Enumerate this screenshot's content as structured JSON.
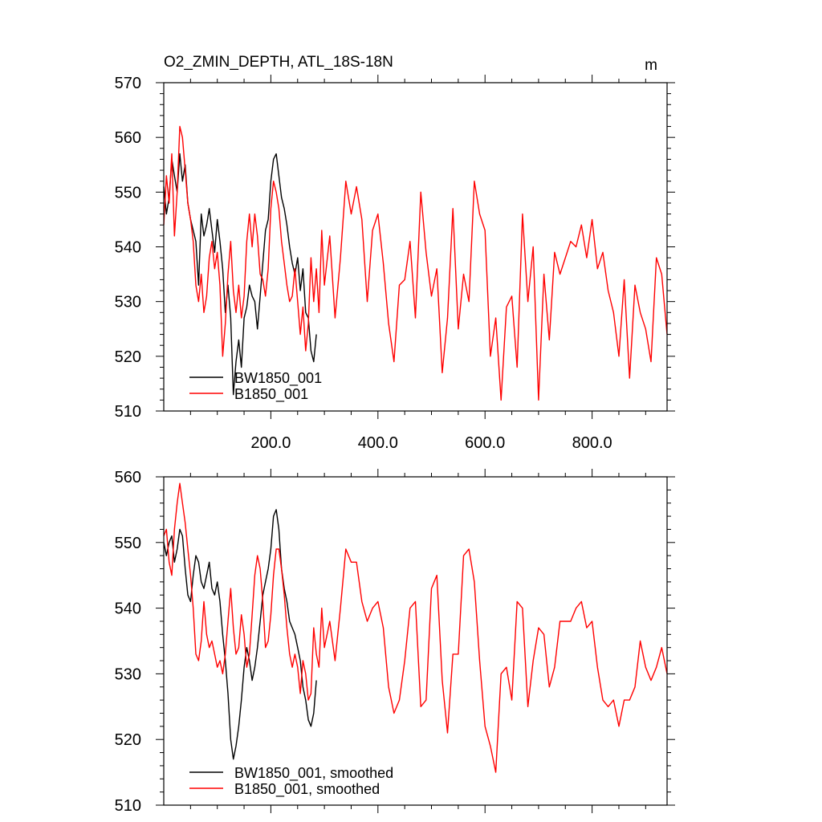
{
  "chart_data": [
    {
      "type": "line",
      "title": "O2_ZMIN_DEPTH, ATL_18S-18N",
      "units": "m",
      "xlim": [
        0,
        940
      ],
      "ylim": [
        510,
        570
      ],
      "x_tick_values": [
        200,
        400,
        600,
        800
      ],
      "x_tick_labels": [
        "200.0",
        "400.0",
        "600.0",
        "800.0"
      ],
      "y_tick_values": [
        510,
        520,
        530,
        540,
        550,
        560,
        570
      ],
      "y_tick_labels": [
        "510",
        "520",
        "530",
        "540",
        "550",
        "560",
        "570"
      ],
      "grid": false,
      "legend_position": "bottom-left",
      "series": [
        {
          "name": "BW1850_001",
          "color": "#000000",
          "x": [
            0,
            5,
            10,
            15,
            20,
            25,
            30,
            35,
            40,
            45,
            50,
            55,
            60,
            65,
            70,
            75,
            80,
            85,
            90,
            95,
            100,
            105,
            110,
            115,
            120,
            125,
            130,
            135,
            140,
            145,
            150,
            155,
            160,
            165,
            170,
            175,
            180,
            185,
            190,
            195,
            200,
            205,
            210,
            215,
            220,
            225,
            230,
            235,
            240,
            245,
            250,
            255,
            260,
            265,
            270,
            275,
            280,
            285
          ],
          "values": [
            551,
            546,
            549,
            556,
            553,
            550,
            557,
            552,
            555,
            548,
            545,
            543,
            541,
            533,
            546,
            542,
            544,
            547,
            543,
            539,
            545,
            541,
            536,
            528,
            533,
            527,
            513,
            519,
            523,
            518,
            527,
            529,
            533,
            531,
            530,
            525,
            531,
            537,
            543,
            545,
            552,
            556,
            557,
            553,
            549,
            547,
            544,
            540,
            537,
            535,
            538,
            532,
            536,
            528,
            527,
            521,
            519,
            524
          ]
        },
        {
          "name": "B1850_001",
          "color": "#ff0000",
          "x": [
            0,
            5,
            10,
            15,
            20,
            25,
            30,
            35,
            40,
            45,
            50,
            55,
            60,
            65,
            70,
            75,
            80,
            85,
            90,
            95,
            100,
            105,
            110,
            115,
            120,
            125,
            130,
            135,
            140,
            145,
            150,
            155,
            160,
            165,
            170,
            175,
            180,
            185,
            190,
            195,
            200,
            205,
            210,
            215,
            220,
            225,
            230,
            235,
            240,
            245,
            250,
            255,
            260,
            265,
            270,
            275,
            280,
            285,
            290,
            295,
            300,
            310,
            320,
            330,
            340,
            350,
            360,
            370,
            380,
            390,
            400,
            410,
            420,
            430,
            440,
            450,
            460,
            470,
            480,
            490,
            500,
            510,
            520,
            530,
            540,
            550,
            560,
            570,
            580,
            590,
            600,
            610,
            620,
            630,
            640,
            650,
            660,
            670,
            680,
            690,
            700,
            710,
            720,
            730,
            740,
            750,
            760,
            770,
            780,
            790,
            800,
            810,
            820,
            830,
            840,
            850,
            860,
            870,
            880,
            890,
            900,
            910,
            920,
            930,
            940
          ],
          "values": [
            544,
            553,
            548,
            557,
            542,
            550,
            562,
            560,
            554,
            548,
            545,
            541,
            533,
            530,
            535,
            528,
            531,
            538,
            541,
            536,
            539,
            533,
            520,
            526,
            535,
            541,
            532,
            528,
            533,
            527,
            531,
            541,
            546,
            540,
            546,
            542,
            535,
            534,
            531,
            536,
            547,
            552,
            550,
            547,
            541,
            537,
            533,
            530,
            531,
            536,
            530,
            524,
            529,
            521,
            526,
            538,
            530,
            536,
            528,
            543,
            533,
            542,
            527,
            538,
            552,
            546,
            551,
            545,
            530,
            543,
            546,
            537,
            526,
            519,
            533,
            534,
            541,
            527,
            550,
            539,
            531,
            536,
            517,
            527,
            547,
            525,
            535,
            530,
            552,
            546,
            543,
            520,
            527,
            512,
            529,
            531,
            518,
            546,
            530,
            540,
            512,
            535,
            523,
            539,
            535,
            538,
            541,
            540,
            544,
            538,
            545,
            536,
            539,
            532,
            528,
            520,
            534,
            516,
            533,
            528,
            525,
            519,
            538,
            535,
            524
          ]
        }
      ]
    },
    {
      "type": "line",
      "xlim": [
        0,
        940
      ],
      "ylim": [
        510,
        560
      ],
      "y_tick_values": [
        510,
        520,
        530,
        540,
        550,
        560
      ],
      "y_tick_labels": [
        "510",
        "520",
        "530",
        "540",
        "550",
        "560"
      ],
      "x_tick_values": [
        200,
        400,
        600,
        800
      ],
      "grid": false,
      "legend_position": "bottom-left",
      "series": [
        {
          "name": "BW1850_001, smoothed",
          "color": "#000000",
          "x": [
            0,
            5,
            10,
            15,
            20,
            25,
            30,
            35,
            40,
            45,
            50,
            55,
            60,
            65,
            70,
            75,
            80,
            85,
            90,
            95,
            100,
            105,
            110,
            115,
            120,
            125,
            130,
            135,
            140,
            145,
            150,
            155,
            160,
            165,
            170,
            175,
            180,
            185,
            190,
            195,
            200,
            205,
            210,
            215,
            220,
            225,
            230,
            235,
            240,
            245,
            250,
            255,
            260,
            265,
            270,
            275,
            280,
            285
          ],
          "values": [
            550,
            548,
            550,
            551,
            547,
            549,
            552,
            551,
            546,
            542,
            541,
            545,
            548,
            547,
            544,
            543,
            545,
            547,
            543,
            542,
            544,
            541,
            536,
            532,
            527,
            520,
            517,
            519,
            522,
            526,
            531,
            534,
            532,
            529,
            531,
            534,
            538,
            542,
            544,
            546,
            549,
            554,
            555,
            552,
            546,
            543,
            541,
            538,
            537,
            536,
            534,
            532,
            528,
            526,
            523,
            522,
            524,
            529
          ]
        },
        {
          "name": "B1850_001, smoothed",
          "color": "#ff0000",
          "x": [
            0,
            5,
            10,
            15,
            20,
            25,
            30,
            35,
            40,
            45,
            50,
            55,
            60,
            65,
            70,
            75,
            80,
            85,
            90,
            95,
            100,
            105,
            110,
            115,
            120,
            125,
            130,
            135,
            140,
            145,
            150,
            155,
            160,
            165,
            170,
            175,
            180,
            185,
            190,
            195,
            200,
            205,
            210,
            215,
            220,
            225,
            230,
            235,
            240,
            245,
            250,
            255,
            260,
            265,
            270,
            275,
            280,
            285,
            290,
            295,
            300,
            310,
            320,
            330,
            340,
            350,
            360,
            370,
            380,
            390,
            400,
            410,
            420,
            430,
            440,
            450,
            460,
            470,
            480,
            490,
            500,
            510,
            520,
            530,
            540,
            550,
            560,
            570,
            580,
            590,
            600,
            610,
            620,
            630,
            640,
            650,
            660,
            670,
            680,
            690,
            700,
            710,
            720,
            730,
            740,
            750,
            760,
            770,
            780,
            790,
            800,
            810,
            820,
            830,
            840,
            850,
            860,
            870,
            880,
            890,
            900,
            910,
            920,
            930,
            940
          ],
          "values": [
            551,
            552,
            547,
            545,
            552,
            556,
            559,
            556,
            553,
            549,
            545,
            540,
            533,
            532,
            535,
            541,
            536,
            534,
            535,
            533,
            531,
            532,
            530,
            533,
            538,
            543,
            537,
            533,
            534,
            539,
            536,
            531,
            533,
            539,
            545,
            548,
            546,
            541,
            534,
            535,
            539,
            545,
            549,
            549,
            546,
            542,
            537,
            533,
            531,
            533,
            531,
            527,
            532,
            530,
            526,
            527,
            537,
            533,
            531,
            540,
            534,
            538,
            532,
            540,
            549,
            547,
            547,
            541,
            538,
            540,
            541,
            537,
            528,
            524,
            526,
            532,
            540,
            541,
            525,
            526,
            543,
            545,
            529,
            521,
            533,
            533,
            548,
            549,
            544,
            532,
            522,
            519,
            515,
            530,
            531,
            526,
            541,
            540,
            525,
            532,
            537,
            536,
            528,
            531,
            538,
            538,
            538,
            540,
            541,
            537,
            538,
            531,
            526,
            525,
            526,
            522,
            526,
            526,
            528,
            535,
            531,
            529,
            531,
            534,
            530
          ]
        }
      ]
    }
  ]
}
